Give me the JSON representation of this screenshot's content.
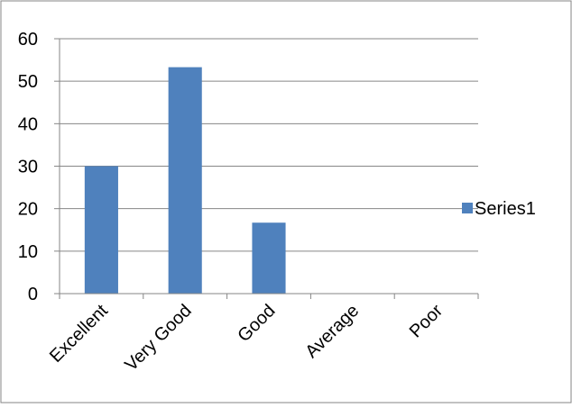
{
  "chart_data": {
    "type": "bar",
    "categories": [
      "Excellent",
      "Very Good",
      "Good",
      "Average",
      "Poor"
    ],
    "series": [
      {
        "name": "Series1",
        "values": [
          30,
          53.3,
          16.7,
          0,
          0
        ]
      }
    ],
    "title": "",
    "xlabel": "",
    "ylabel": "",
    "ylim": [
      0,
      60
    ],
    "yticks": [
      0,
      10,
      20,
      30,
      40,
      50,
      60
    ],
    "grid": true,
    "legend": "right",
    "colors": {
      "bar": "#4F81BD",
      "grid": "#868686",
      "axis": "#868686",
      "border": "#868686"
    }
  }
}
